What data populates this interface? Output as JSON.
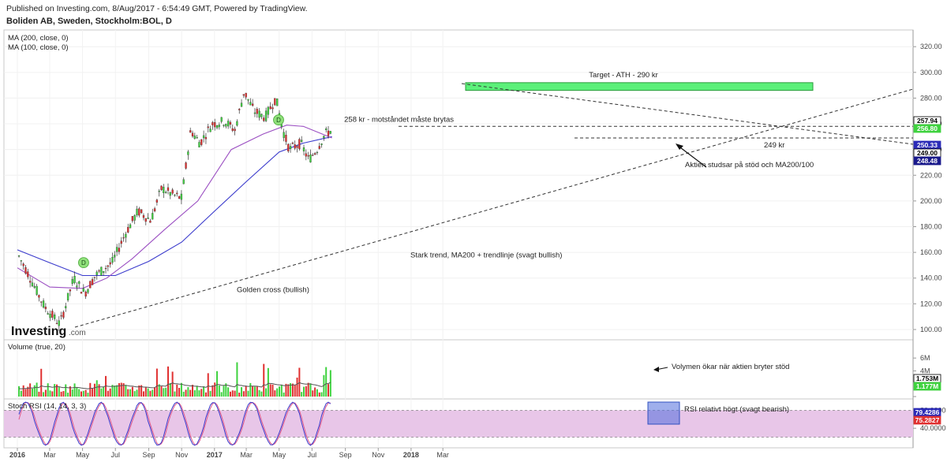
{
  "header": {
    "published": "Published on Investing.com, 8/Aug/2017 - 6:54:49 GMT, Powered by TradingView.",
    "title": "Boliden AB, Sweden, Stockholm:BOL, D"
  },
  "legend": {
    "ma200": "MA (200, close, 0)",
    "ma100": "MA (100, close, 0)",
    "volume": "Volume (true, 20)",
    "rsi": "Stoch RSI (14, 14, 3, 3)"
  },
  "watermark": {
    "brand": "Investing",
    "suffix": ".com"
  },
  "annotations": {
    "target": "Target - ATH - 290 kr",
    "resistance": "258 kr - motståndet måste brytas",
    "support": "249 kr",
    "bounce": "Aktien studsar på stöd och MA200/100",
    "trend": "Stark trend, MA200 + trendlinje (svagt bullish)",
    "golden_cross": "Golden cross (bullish)",
    "volume_note": "Volymen ökar när aktien bryter stöd",
    "rsi_note": "RSI relativt högt (svagt bearish)",
    "marker": "D"
  },
  "price_tags": [
    {
      "value": "257.94",
      "bg": "#ffffff",
      "fg": "#000000",
      "border": "#000000",
      "price": 257.94
    },
    {
      "value": "256.80",
      "bg": "#3fd23f",
      "fg": "#ffffff",
      "border": "#3fd23f",
      "price": 256.8
    },
    {
      "value": "250.33",
      "bg": "#2b2bb8",
      "fg": "#ffffff",
      "border": "#2b2bb8",
      "price": 250.33
    },
    {
      "value": "249.00",
      "bg": "#ffffff",
      "fg": "#000000",
      "border": "#000000",
      "price": 249.0
    },
    {
      "value": "248.48",
      "bg": "#1a1a8c",
      "fg": "#ffffff",
      "border": "#1a1a8c",
      "price": 248.48
    }
  ],
  "volume_tags": [
    {
      "value": "1.753M",
      "bg": "#ffffff",
      "fg": "#000000",
      "border": "#000000"
    },
    {
      "value": "1.177M",
      "bg": "#3fd23f",
      "fg": "#ffffff",
      "border": "#3fd23f"
    }
  ],
  "rsi_tags": [
    {
      "value": "79.4286",
      "bg": "#2b2bb8",
      "fg": "#ffffff",
      "border": "#2b2bb8"
    },
    {
      "value": "75.2827",
      "bg": "#e03030",
      "fg": "#ffffff",
      "border": "#e03030"
    }
  ],
  "colors": {
    "up": "#3fd23f",
    "down": "#e03030",
    "ma200": "#3a3acc",
    "ma100": "#9b4fc2",
    "volume_ma": "#555555",
    "rsi_k": "#3a3acc",
    "rsi_d": "#e05a8a",
    "rsi_band": "#e8c6e8",
    "target_box": "#5cf07a"
  },
  "chart_data": [
    {
      "type": "candlestick",
      "title": "Boliden AB, Sweden, Stockholm:BOL, D",
      "x_range": [
        "2016-01",
        "2018-03"
      ],
      "x_ticks": [
        "2016",
        "Mar",
        "May",
        "Jul",
        "Sep",
        "Nov",
        "2017",
        "Mar",
        "May",
        "Jul",
        "Sep",
        "Nov",
        "2018",
        "Mar"
      ],
      "y_ticks": [
        100,
        120,
        140,
        160,
        180,
        200,
        220,
        240,
        260,
        280,
        300,
        320
      ],
      "y_tick_labels": [
        "100.00",
        "120.00",
        "140.00",
        "160.00",
        "180.00",
        "200.00",
        "220.00",
        "240.00",
        "260.00",
        "280.00",
        "300.00",
        "320.00"
      ],
      "ylim": [
        92,
        333
      ],
      "close_series": {
        "x": [
          "2016-01-04",
          "2016-01-25",
          "2016-02-20",
          "2016-03-20",
          "2016-04-15",
          "2016-05-05",
          "2016-05-25",
          "2016-06-25",
          "2016-07-20",
          "2016-08-12",
          "2016-09-05",
          "2016-09-25",
          "2016-10-15",
          "2016-11-01",
          "2016-11-18",
          "2016-12-05",
          "2016-12-28",
          "2017-01-20",
          "2017-02-08",
          "2017-02-25",
          "2017-03-15",
          "2017-04-05",
          "2017-04-25",
          "2017-05-08",
          "2017-05-20",
          "2017-06-10",
          "2017-06-25",
          "2017-07-10",
          "2017-07-25",
          "2017-08-07"
        ],
        "close": [
          157,
          140,
          118,
          104,
          140,
          128,
          142,
          152,
          175,
          192,
          185,
          210,
          205,
          202,
          255,
          245,
          260,
          262,
          255,
          285,
          270,
          265,
          280,
          255,
          240,
          245,
          232,
          240,
          252,
          255
        ]
      },
      "ma200": {
        "x": [
          "2016-01-01",
          "2016-03-01",
          "2016-05-01",
          "2016-07-01",
          "2016-09-01",
          "2016-11-01",
          "2017-01-01",
          "2017-03-01",
          "2017-05-01",
          "2017-06-15",
          "2017-08-07"
        ],
        "y": [
          162,
          152,
          142,
          142,
          153,
          168,
          192,
          215,
          238,
          245,
          250
        ]
      },
      "ma100": {
        "x": [
          "2016-01-01",
          "2016-03-01",
          "2016-05-01",
          "2016-06-15",
          "2016-08-01",
          "2016-10-01",
          "2016-12-01",
          "2017-02-01",
          "2017-04-01",
          "2017-05-15",
          "2017-06-15",
          "2017-08-07"
        ],
        "y": [
          148,
          133,
          132,
          140,
          155,
          178,
          200,
          240,
          252,
          259,
          258,
          249
        ]
      },
      "levels": [
        {
          "name": "Resistance",
          "value": 258
        },
        {
          "name": "Support",
          "value": 249
        },
        {
          "name": "Target",
          "value": 290
        }
      ]
    },
    {
      "type": "bar",
      "title": "Volume (true, 20)",
      "y_ticks": [
        0,
        2,
        4,
        6
      ],
      "y_tick_labels": [
        "",
        "2M",
        "4M",
        "6M"
      ],
      "ylim": [
        0,
        7
      ],
      "last_values": [
        "1.753M",
        "1.177M"
      ]
    },
    {
      "type": "line",
      "title": "Stoch RSI (14, 14, 3, 3)",
      "y_ticks": [
        40,
        80
      ],
      "y_tick_labels": [
        "40.0000",
        "80.0000"
      ],
      "ylim": [
        0,
        100
      ],
      "band": [
        20,
        80
      ],
      "last_values": [
        "79.4286",
        "75.2827"
      ]
    }
  ]
}
